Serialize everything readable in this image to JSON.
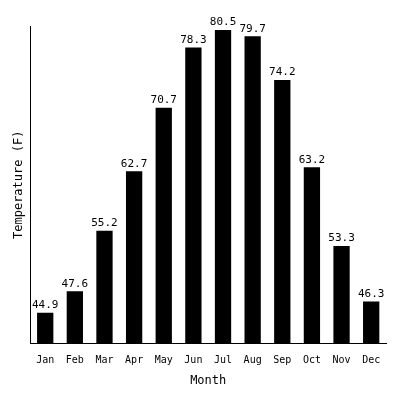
{
  "chart_data": {
    "type": "bar",
    "x_label": "Month",
    "y_label": "Temperature (F)",
    "categories": [
      "Jan",
      "Feb",
      "Mar",
      "Apr",
      "May",
      "Jun",
      "Jul",
      "Aug",
      "Sep",
      "Oct",
      "Nov",
      "Dec"
    ],
    "values": [
      44.9,
      47.6,
      55.2,
      62.7,
      70.7,
      78.3,
      80.5,
      79.7,
      74.2,
      63.2,
      53.3,
      46.3
    ],
    "color": "#000000",
    "ylim": [
      41,
      81
    ],
    "grid": false,
    "data_labels": true,
    "tick_labels": "x"
  }
}
